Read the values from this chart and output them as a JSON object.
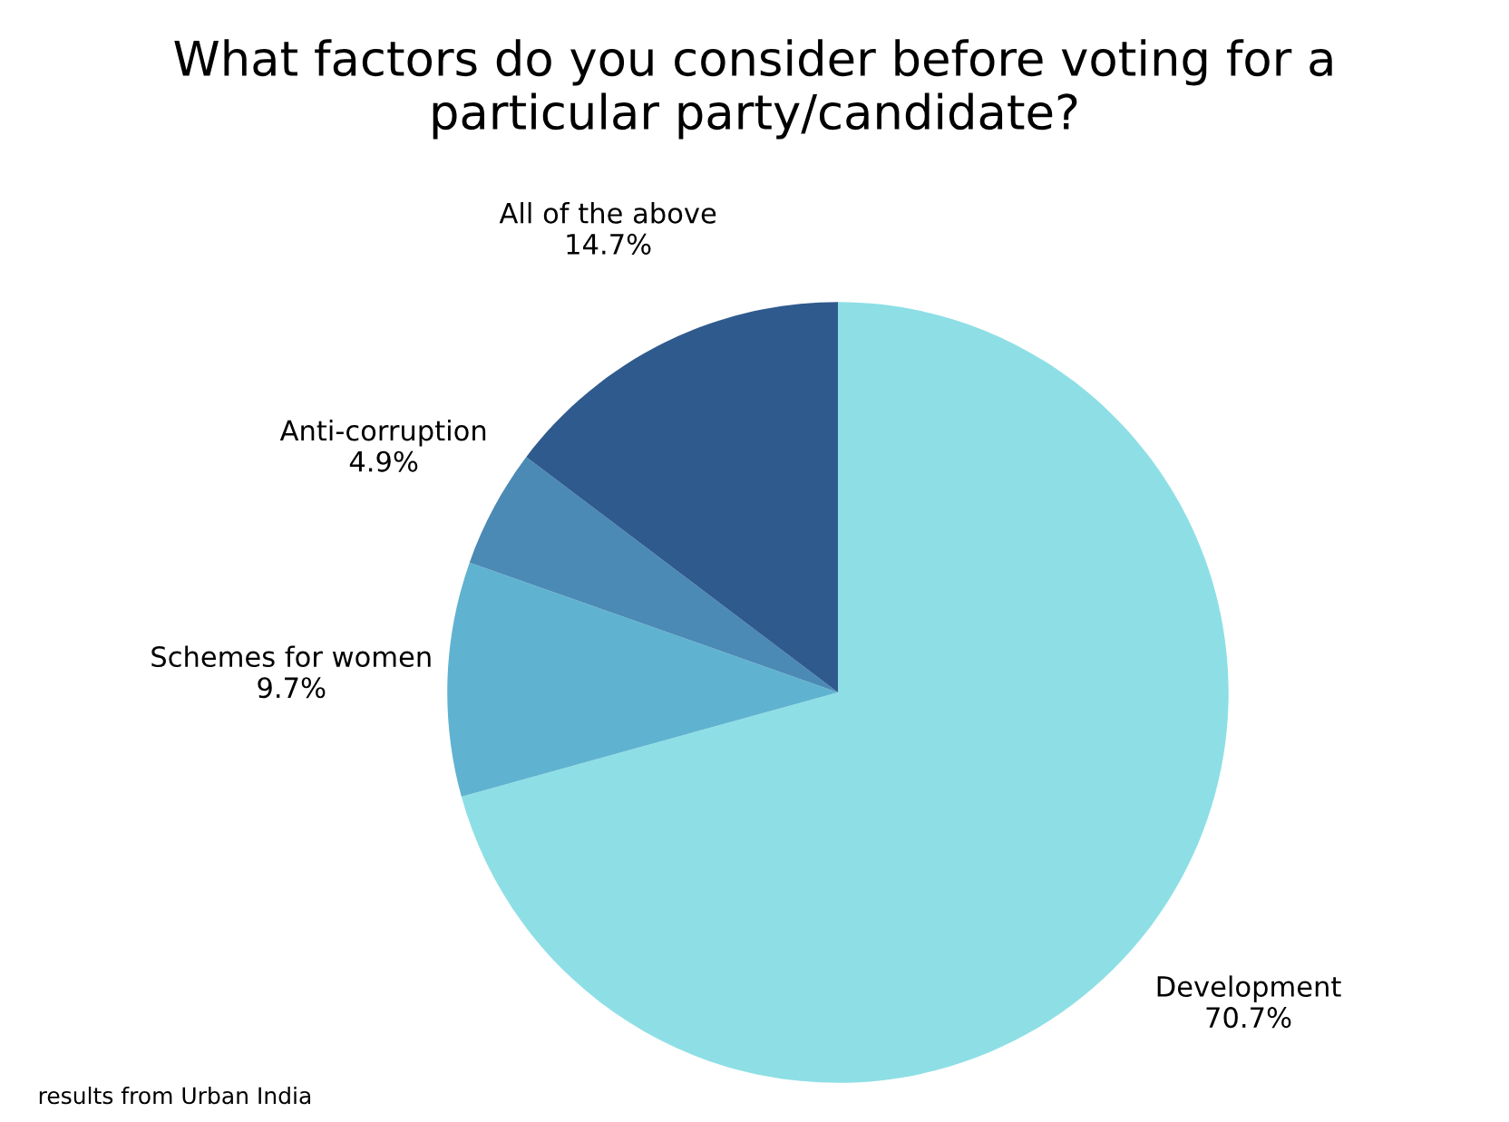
{
  "chart_data": {
    "type": "pie",
    "title": "What factors do you consider before voting for a\nparticular party/candidate?",
    "categories": [
      "Development",
      "Schemes for women",
      "Anti-corruption",
      "All of the above"
    ],
    "values": [
      70.7,
      9.7,
      4.9,
      14.7
    ],
    "colors": [
      "#8ddfe5",
      "#5fb3d0",
      "#4a8ab5",
      "#2f5a8e"
    ],
    "value_labels": [
      "70.7%",
      "9.7%",
      "4.9%",
      "14.7%"
    ],
    "annotations": [
      "results from Urban India"
    ]
  }
}
